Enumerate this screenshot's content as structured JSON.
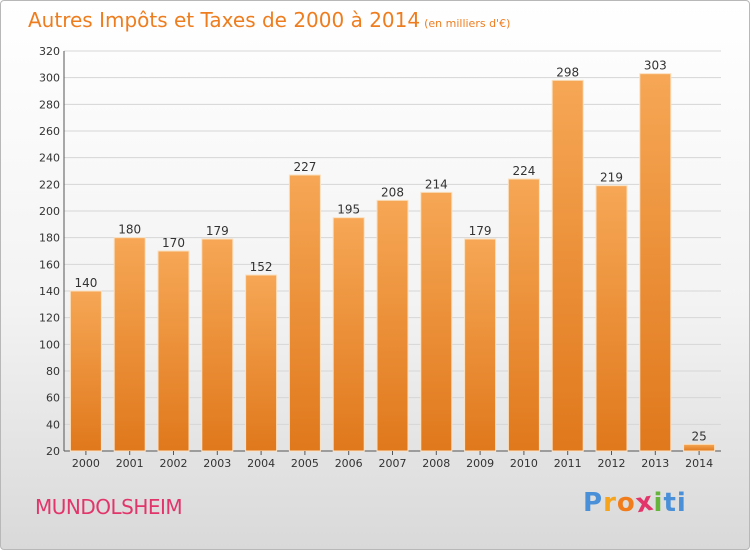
{
  "title": "Autres Impôts et Taxes de 2000 à 2014",
  "subtitle": "(en milliers d'€)",
  "commune": "MUNDOLSHEIM",
  "logo": {
    "letters": [
      "P",
      "r",
      "o",
      "x",
      "i",
      "t",
      "i"
    ],
    "text": "Proxiti"
  },
  "colors": {
    "title": "#ee7d1f",
    "bar": "#f0963a",
    "commune": "#e2356b"
  },
  "chart_data": {
    "type": "bar",
    "categories": [
      "2000",
      "2001",
      "2002",
      "2003",
      "2004",
      "2005",
      "2006",
      "2007",
      "2008",
      "2009",
      "2010",
      "2011",
      "2012",
      "2013",
      "2014"
    ],
    "values": [
      140,
      180,
      170,
      179,
      152,
      227,
      195,
      208,
      214,
      179,
      224,
      298,
      219,
      303,
      25
    ],
    "title": "Autres Impôts et Taxes de 2000 à 2014",
    "xlabel": "",
    "ylabel": "",
    "ylim": [
      20,
      320
    ],
    "yticks": [
      20,
      40,
      60,
      80,
      100,
      120,
      140,
      160,
      180,
      200,
      220,
      240,
      260,
      280,
      300,
      320
    ],
    "grid": true,
    "legend": "none"
  }
}
